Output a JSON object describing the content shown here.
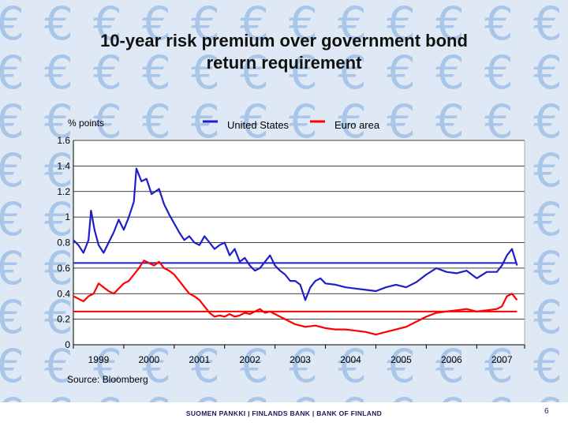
{
  "slide": {
    "title_line1": "10-year risk premium over government bond",
    "title_line2": "return requirement",
    "source": "Source: Bloomberg",
    "footer": "SUOMEN PANKKI | FINLANDS BANK | BANK OF FINLAND",
    "page_number": "6"
  },
  "background": {
    "pattern_glyph": "€",
    "pattern_color": "#a9c6e8",
    "base_color": "#dfe9f6"
  },
  "chart_data": {
    "type": "line",
    "title": "",
    "ylabel": "% points",
    "xlabel": "",
    "ylim": [
      0,
      1.6
    ],
    "yticks": [
      "0",
      "0.2",
      "0.4",
      "0.6",
      "0.8",
      "1",
      "1.2",
      "1.4",
      "1.6"
    ],
    "xlim": [
      1999.0,
      2007.95
    ],
    "xticks": [
      "1999",
      "2000",
      "2001",
      "2002",
      "2003",
      "2004",
      "2005",
      "2006",
      "2007"
    ],
    "grid": true,
    "legend_position": "top",
    "series": [
      {
        "name": "United States",
        "color": "#1f1fc8",
        "x": [
          1999.0,
          1999.1,
          1999.2,
          1999.3,
          1999.35,
          1999.42,
          1999.5,
          1999.6,
          1999.7,
          1999.8,
          1999.9,
          2000.0,
          2000.1,
          2000.2,
          2000.25,
          2000.35,
          2000.45,
          2000.55,
          2000.7,
          2000.8,
          2000.9,
          2001.0,
          2001.1,
          2001.2,
          2001.3,
          2001.4,
          2001.5,
          2001.6,
          2001.7,
          2001.8,
          2001.9,
          2002.0,
          2002.1,
          2002.2,
          2002.3,
          2002.4,
          2002.5,
          2002.6,
          2002.7,
          2002.8,
          2002.9,
          2003.0,
          2003.1,
          2003.2,
          2003.3,
          2003.4,
          2003.5,
          2003.6,
          2003.7,
          2003.8,
          2003.9,
          2004.0,
          2004.2,
          2004.4,
          2004.6,
          2004.8,
          2005.0,
          2005.2,
          2005.4,
          2005.6,
          2005.8,
          2006.0,
          2006.2,
          2006.4,
          2006.6,
          2006.8,
          2007.0,
          2007.2,
          2007.4,
          2007.5,
          2007.6,
          2007.7,
          2007.8
        ],
        "y": [
          0.82,
          0.78,
          0.72,
          0.82,
          1.05,
          0.9,
          0.78,
          0.72,
          0.8,
          0.88,
          0.98,
          0.9,
          1.0,
          1.12,
          1.38,
          1.28,
          1.3,
          1.18,
          1.22,
          1.1,
          1.02,
          0.95,
          0.88,
          0.82,
          0.85,
          0.8,
          0.78,
          0.85,
          0.8,
          0.75,
          0.78,
          0.8,
          0.7,
          0.75,
          0.65,
          0.68,
          0.62,
          0.58,
          0.6,
          0.65,
          0.7,
          0.62,
          0.58,
          0.55,
          0.5,
          0.5,
          0.47,
          0.35,
          0.45,
          0.5,
          0.52,
          0.48,
          0.47,
          0.45,
          0.44,
          0.43,
          0.42,
          0.45,
          0.47,
          0.45,
          0.49,
          0.55,
          0.6,
          0.57,
          0.56,
          0.58,
          0.52,
          0.57,
          0.57,
          0.62,
          0.7,
          0.75,
          0.62
        ]
      },
      {
        "name": "",
        "color": "#1f1fc8",
        "x": [
          1999.0,
          2007.8
        ],
        "y": [
          0.64,
          0.64
        ]
      },
      {
        "name": "Euro area",
        "color": "#ff0000",
        "x": [
          1999.0,
          1999.1,
          1999.2,
          1999.3,
          1999.4,
          1999.5,
          1999.6,
          1999.7,
          1999.8,
          1999.9,
          2000.0,
          2000.1,
          2000.2,
          2000.3,
          2000.4,
          2000.5,
          2000.6,
          2000.7,
          2000.8,
          2000.9,
          2001.0,
          2001.1,
          2001.2,
          2001.3,
          2001.4,
          2001.5,
          2001.6,
          2001.7,
          2001.8,
          2001.9,
          2002.0,
          2002.1,
          2002.2,
          2002.3,
          2002.4,
          2002.5,
          2002.6,
          2002.7,
          2002.8,
          2002.9,
          2003.0,
          2003.2,
          2003.4,
          2003.6,
          2003.8,
          2004.0,
          2004.2,
          2004.4,
          2004.6,
          2004.8,
          2005.0,
          2005.2,
          2005.4,
          2005.6,
          2005.8,
          2006.0,
          2006.2,
          2006.4,
          2006.6,
          2006.8,
          2007.0,
          2007.2,
          2007.4,
          2007.5,
          2007.6,
          2007.7,
          2007.8
        ],
        "y": [
          0.38,
          0.36,
          0.34,
          0.38,
          0.4,
          0.48,
          0.45,
          0.42,
          0.4,
          0.44,
          0.48,
          0.5,
          0.55,
          0.6,
          0.66,
          0.64,
          0.62,
          0.65,
          0.6,
          0.58,
          0.55,
          0.5,
          0.45,
          0.4,
          0.38,
          0.35,
          0.3,
          0.25,
          0.22,
          0.23,
          0.22,
          0.24,
          0.22,
          0.23,
          0.25,
          0.24,
          0.26,
          0.28,
          0.25,
          0.26,
          0.24,
          0.2,
          0.16,
          0.14,
          0.15,
          0.13,
          0.12,
          0.12,
          0.11,
          0.1,
          0.08,
          0.1,
          0.12,
          0.14,
          0.18,
          0.22,
          0.25,
          0.26,
          0.27,
          0.28,
          0.26,
          0.27,
          0.28,
          0.3,
          0.38,
          0.4,
          0.35
        ]
      },
      {
        "name": "",
        "color": "#ff0000",
        "x": [
          1999.0,
          2007.8
        ],
        "y": [
          0.26,
          0.26
        ]
      }
    ]
  }
}
